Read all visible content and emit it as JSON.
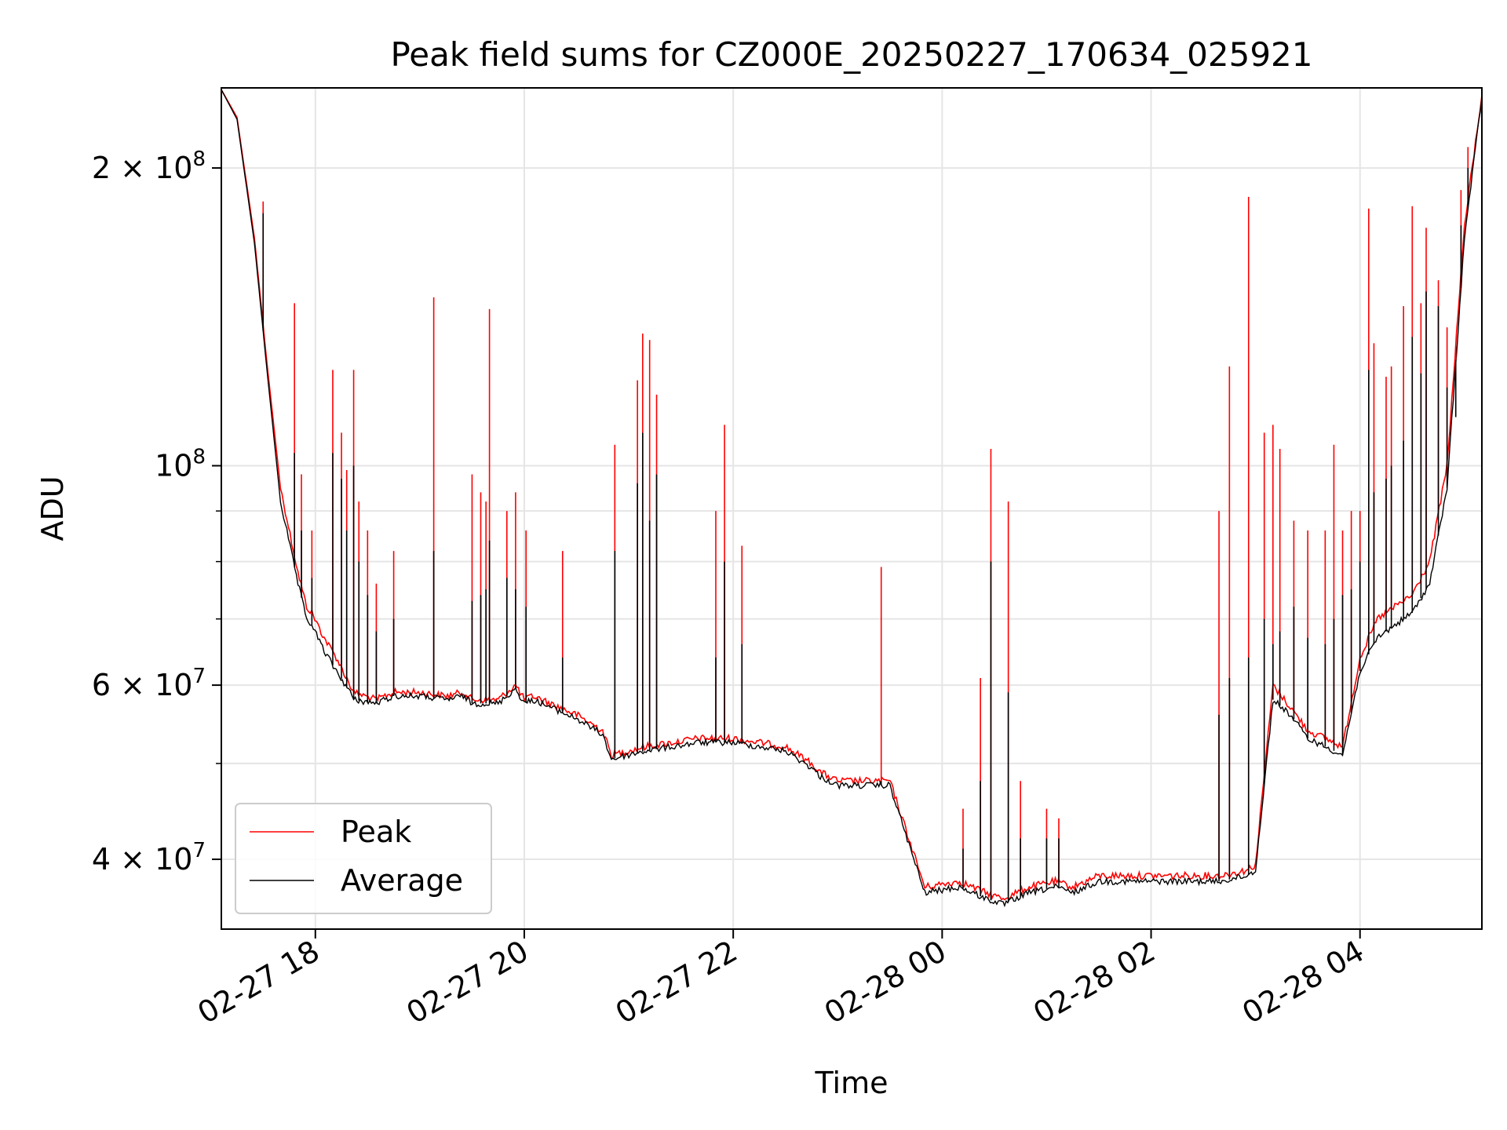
{
  "chart_data": {
    "type": "line",
    "title": "Peak field sums for CZ000E_20250227_170634_025921",
    "xlabel": "Time",
    "ylabel": "ADU",
    "x_type": "datetime",
    "xlim": [
      "2025-02-27T17:06",
      "2025-02-28T05:10"
    ],
    "ylim": [
      34000000,
      241000000
    ],
    "yscale": "log",
    "grid": true,
    "legend": {
      "position": "lower-left"
    },
    "x_ticks": [
      {
        "value": "2025-02-27T18:00",
        "label": "02-27 18"
      },
      {
        "value": "2025-02-27T20:00",
        "label": "02-27 20"
      },
      {
        "value": "2025-02-27T22:00",
        "label": "02-27 22"
      },
      {
        "value": "2025-02-28T00:00",
        "label": "02-28 00"
      },
      {
        "value": "2025-02-28T02:00",
        "label": "02-28 02"
      },
      {
        "value": "2025-02-28T04:00",
        "label": "02-28 04"
      }
    ],
    "y_ticks": [
      {
        "value": 40000000,
        "label_base": "4 × 10",
        "label_exp": "7"
      },
      {
        "value": 60000000,
        "label_base": "6 × 10",
        "label_exp": "7"
      },
      {
        "value": 100000000,
        "label_base": "10",
        "label_exp": "8"
      },
      {
        "value": 200000000,
        "label_base": "2 × 10",
        "label_exp": "8"
      }
    ],
    "y_minor_ticks": [
      50000000,
      70000000,
      80000000,
      90000000
    ],
    "series": [
      {
        "name": "Peak",
        "color": "#ff0000",
        "x": [
          "2025-02-27T17:06",
          "2025-02-27T17:15",
          "2025-02-27T17:25",
          "2025-02-27T17:32",
          "2025-02-27T17:40",
          "2025-02-27T17:50",
          "2025-02-27T17:55",
          "2025-02-27T17:58",
          "2025-02-27T18:05",
          "2025-02-27T18:12",
          "2025-02-27T18:20",
          "2025-02-27T18:22",
          "2025-02-27T18:35",
          "2025-02-27T18:40",
          "2025-02-27T18:45",
          "2025-02-27T19:00",
          "2025-02-27T19:15",
          "2025-02-27T19:25",
          "2025-02-27T19:30",
          "2025-02-27T19:45",
          "2025-02-27T19:55",
          "2025-02-27T20:00",
          "2025-02-27T20:05",
          "2025-02-27T20:30",
          "2025-02-27T20:45",
          "2025-02-27T20:50",
          "2025-02-27T21:00",
          "2025-02-27T21:10",
          "2025-02-27T21:40",
          "2025-02-27T21:45",
          "2025-02-27T22:00",
          "2025-02-27T22:30",
          "2025-02-27T22:45",
          "2025-02-27T22:50",
          "2025-02-27T23:00",
          "2025-02-27T23:30",
          "2025-02-27T23:50",
          "2025-02-28T00:10",
          "2025-02-28T00:25",
          "2025-02-28T00:35",
          "2025-02-28T00:50",
          "2025-02-28T01:05",
          "2025-02-28T01:15",
          "2025-02-28T01:30",
          "2025-02-28T01:45",
          "2025-02-28T02:15",
          "2025-02-28T02:40",
          "2025-02-28T02:55",
          "2025-02-28T03:00",
          "2025-02-28T03:10",
          "2025-02-28T03:20",
          "2025-02-28T03:30",
          "2025-02-28T03:40",
          "2025-02-28T03:50",
          "2025-02-28T04:00",
          "2025-02-28T04:10",
          "2025-02-28T04:20",
          "2025-02-28T04:30",
          "2025-02-28T04:40",
          "2025-02-28T04:50",
          "2025-02-28T05:00",
          "2025-02-28T05:10"
        ],
        "values": [
          240000000,
          225000000,
          170000000,
          128000000,
          95000000,
          78000000,
          72000000,
          71000000,
          67000000,
          64000000,
          60000000,
          59000000,
          58000000,
          58500000,
          59000000,
          59000000,
          58500000,
          59000000,
          58000000,
          58000000,
          60000000,
          58000000,
          58500000,
          56000000,
          54000000,
          51000000,
          51500000,
          52000000,
          53000000,
          53000000,
          53000000,
          52000000,
          50000000,
          49000000,
          48000000,
          48000000,
          37500000,
          38000000,
          37000000,
          36500000,
          37500000,
          38000000,
          37500000,
          38500000,
          38500000,
          38500000,
          38500000,
          39000000,
          39500000,
          60000000,
          57000000,
          54000000,
          53000000,
          52000000,
          64000000,
          70000000,
          72000000,
          74000000,
          80000000,
          100000000,
          175000000,
          237000000
        ]
      },
      {
        "name": "Average",
        "color": "#000000",
        "x": [
          "2025-02-27T17:06",
          "2025-02-27T17:15",
          "2025-02-27T17:25",
          "2025-02-27T17:32",
          "2025-02-27T17:40",
          "2025-02-27T17:50",
          "2025-02-27T17:55",
          "2025-02-27T17:58",
          "2025-02-27T18:05",
          "2025-02-27T18:12",
          "2025-02-27T18:20",
          "2025-02-27T18:22",
          "2025-02-27T18:35",
          "2025-02-27T18:40",
          "2025-02-27T18:45",
          "2025-02-27T19:00",
          "2025-02-27T19:15",
          "2025-02-27T19:25",
          "2025-02-27T19:30",
          "2025-02-27T19:45",
          "2025-02-27T19:55",
          "2025-02-27T20:00",
          "2025-02-27T20:05",
          "2025-02-27T20:30",
          "2025-02-27T20:45",
          "2025-02-27T20:50",
          "2025-02-27T21:00",
          "2025-02-27T21:10",
          "2025-02-27T21:40",
          "2025-02-27T21:45",
          "2025-02-27T22:00",
          "2025-02-27T22:30",
          "2025-02-27T22:45",
          "2025-02-27T22:50",
          "2025-02-27T23:00",
          "2025-02-27T23:30",
          "2025-02-27T23:50",
          "2025-02-28T00:10",
          "2025-02-28T00:25",
          "2025-02-28T00:35",
          "2025-02-28T00:50",
          "2025-02-28T01:05",
          "2025-02-28T01:15",
          "2025-02-28T01:30",
          "2025-02-28T01:45",
          "2025-02-28T02:15",
          "2025-02-28T02:40",
          "2025-02-28T02:55",
          "2025-02-28T03:00",
          "2025-02-28T03:10",
          "2025-02-28T03:20",
          "2025-02-28T03:30",
          "2025-02-28T03:40",
          "2025-02-28T03:50",
          "2025-02-28T04:00",
          "2025-02-28T04:10",
          "2025-02-28T04:20",
          "2025-02-28T04:30",
          "2025-02-28T04:40",
          "2025-02-28T04:50",
          "2025-02-28T05:00",
          "2025-02-28T05:10"
        ],
        "values": [
          240000000,
          224000000,
          168000000,
          126000000,
          92000000,
          76000000,
          70000000,
          69000000,
          65000000,
          62000000,
          59000000,
          58000000,
          57500000,
          58000000,
          58500000,
          58500000,
          58000000,
          58500000,
          57500000,
          57500000,
          59500000,
          57500000,
          58000000,
          55500000,
          53500000,
          50500000,
          51000000,
          51500000,
          52500000,
          52500000,
          52500000,
          51500000,
          49500000,
          48500000,
          47500000,
          47500000,
          37000000,
          37500000,
          36500000,
          36000000,
          37000000,
          37500000,
          37000000,
          38000000,
          38000000,
          38000000,
          38000000,
          38500000,
          39000000,
          58000000,
          56000000,
          53000000,
          52000000,
          51000000,
          62000000,
          67000000,
          69000000,
          71000000,
          76000000,
          95000000,
          170000000,
          236000000
        ]
      }
    ],
    "spikes": {
      "x": [
        "2025-02-27T17:30",
        "2025-02-27T17:48",
        "2025-02-27T17:52",
        "2025-02-27T17:58",
        "2025-02-27T18:10",
        "2025-02-27T18:15",
        "2025-02-27T18:18",
        "2025-02-27T18:22",
        "2025-02-27T18:25",
        "2025-02-27T18:30",
        "2025-02-27T18:35",
        "2025-02-27T18:45",
        "2025-02-27T19:08",
        "2025-02-27T19:30",
        "2025-02-27T19:35",
        "2025-02-27T19:38",
        "2025-02-27T19:40",
        "2025-02-27T19:50",
        "2025-02-27T19:55",
        "2025-02-27T20:01",
        "2025-02-27T20:22",
        "2025-02-27T20:52",
        "2025-02-27T21:05",
        "2025-02-27T21:08",
        "2025-02-27T21:12",
        "2025-02-27T21:16",
        "2025-02-27T21:50",
        "2025-02-27T21:55",
        "2025-02-27T22:05",
        "2025-02-27T23:25",
        "2025-02-28T00:12",
        "2025-02-28T00:22",
        "2025-02-28T00:28",
        "2025-02-28T00:38",
        "2025-02-28T00:45",
        "2025-02-28T01:00",
        "2025-02-28T01:07",
        "2025-02-28T02:39",
        "2025-02-28T02:45",
        "2025-02-28T02:56",
        "2025-02-28T03:05",
        "2025-02-28T03:10",
        "2025-02-28T03:14",
        "2025-02-28T03:22",
        "2025-02-28T03:30",
        "2025-02-28T03:40",
        "2025-02-28T03:45",
        "2025-02-28T03:50",
        "2025-02-28T03:55",
        "2025-02-28T04:00",
        "2025-02-28T04:05",
        "2025-02-28T04:08",
        "2025-02-28T04:15",
        "2025-02-28T04:18",
        "2025-02-28T04:25",
        "2025-02-28T04:30",
        "2025-02-28T04:35",
        "2025-02-28T04:38",
        "2025-02-28T04:45",
        "2025-02-28T04:50",
        "2025-02-28T04:55",
        "2025-02-28T04:58",
        "2025-02-28T05:02"
      ],
      "peak": [
        185000000,
        146000000,
        98000000,
        86000000,
        125000000,
        108000000,
        99000000,
        125000000,
        92000000,
        86000000,
        76000000,
        82000000,
        148000000,
        98000000,
        94000000,
        92000000,
        144000000,
        90000000,
        94000000,
        86000000,
        82000000,
        105000000,
        122000000,
        136000000,
        134000000,
        118000000,
        90000000,
        110000000,
        83000000,
        79000000,
        45000000,
        61000000,
        104000000,
        92000000,
        48000000,
        45000000,
        44000000,
        90000000,
        126000000,
        187000000,
        108000000,
        110000000,
        104000000,
        88000000,
        86000000,
        86000000,
        105000000,
        86000000,
        90000000,
        90000000,
        182000000,
        133000000,
        123000000,
        126000000,
        145000000,
        183000000,
        146000000,
        174000000,
        154000000,
        138000000,
        128000000,
        190000000,
        210000000
      ],
      "average": [
        180000000,
        103000000,
        86000000,
        77000000,
        103000000,
        97000000,
        86000000,
        100000000,
        80000000,
        74000000,
        68000000,
        70000000,
        82000000,
        73000000,
        74000000,
        75000000,
        84000000,
        77000000,
        75000000,
        72000000,
        64000000,
        82000000,
        96000000,
        108000000,
        88000000,
        98000000,
        64000000,
        80000000,
        66000000,
        48000000,
        41000000,
        48000000,
        80000000,
        59000000,
        42000000,
        42000000,
        42000000,
        56000000,
        61000000,
        64000000,
        70000000,
        66000000,
        68000000,
        72000000,
        67000000,
        66000000,
        70000000,
        74000000,
        75000000,
        80000000,
        125000000,
        94000000,
        97000000,
        100000000,
        106000000,
        135000000,
        124000000,
        150000000,
        145000000,
        120000000,
        112000000,
        175000000,
        200000000
      ]
    }
  }
}
